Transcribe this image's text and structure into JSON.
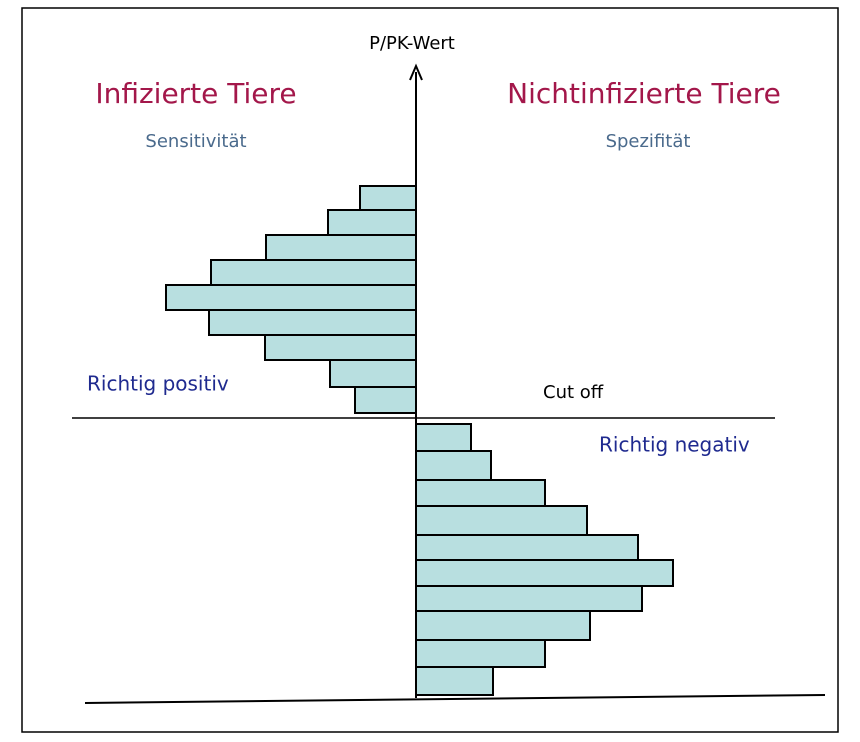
{
  "axis_label": "P/PK-Wert",
  "left": {
    "title": "Infizierte Tiere",
    "subtitle": "Sensitivität",
    "region_label": "Richtig positiv"
  },
  "right": {
    "title": "Nichtinfizierte Tiere",
    "subtitle": "Spezifität",
    "region_label": "Richtig negativ"
  },
  "cutoff_label": "Cut off"
}
